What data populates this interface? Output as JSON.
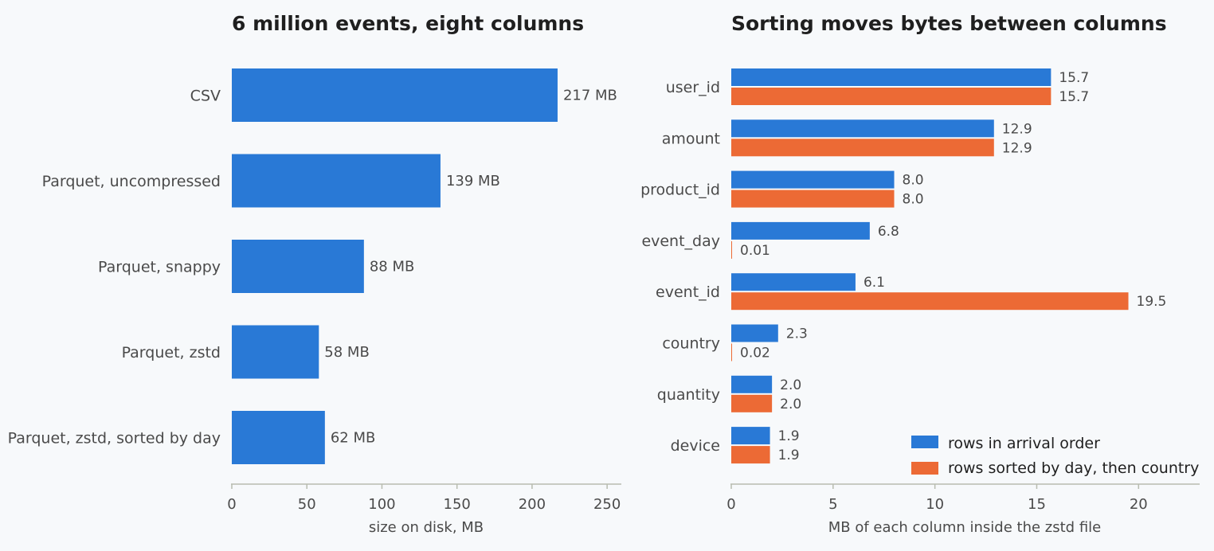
{
  "colors": {
    "blue": "#2979d6",
    "orange": "#ec6a35"
  },
  "chart_data": [
    {
      "type": "bar",
      "orientation": "horizontal",
      "title": "6 million events, eight columns",
      "xlabel": "size on disk, MB",
      "xlim": [
        0,
        260
      ],
      "xticks": [
        0,
        50,
        100,
        150,
        200,
        250
      ],
      "categories": [
        "CSV",
        "Parquet, uncompressed",
        "Parquet, snappy",
        "Parquet, zstd",
        "Parquet, zstd, sorted by day"
      ],
      "values": [
        217,
        139,
        88,
        58,
        62
      ],
      "data_labels": [
        "217 MB",
        "139 MB",
        "88 MB",
        "58 MB",
        "62 MB"
      ],
      "grid": false
    },
    {
      "type": "bar",
      "orientation": "horizontal",
      "title": "Sorting moves bytes between columns",
      "xlabel": "MB of each column inside the zstd file",
      "xlim": [
        0,
        23
      ],
      "xticks": [
        0,
        5,
        10,
        15,
        20
      ],
      "categories": [
        "user_id",
        "amount",
        "product_id",
        "event_day",
        "event_id",
        "country",
        "quantity",
        "device"
      ],
      "series": [
        {
          "name": "rows in arrival order",
          "values": [
            15.7,
            12.9,
            8.0,
            6.8,
            6.1,
            2.3,
            2.0,
            1.9
          ],
          "labels": [
            "15.7",
            "12.9",
            "8.0",
            "6.8",
            "6.1",
            "2.3",
            "2.0",
            "1.9"
          ]
        },
        {
          "name": "rows sorted by day, then country",
          "values": [
            15.7,
            12.9,
            8.0,
            0.01,
            19.5,
            0.02,
            2.0,
            1.9
          ],
          "labels": [
            "15.7",
            "12.9",
            "8.0",
            "0.01",
            "19.5",
            "0.02",
            "2.0",
            "1.9"
          ]
        }
      ],
      "legend": "bottom-right",
      "grid": false
    }
  ]
}
